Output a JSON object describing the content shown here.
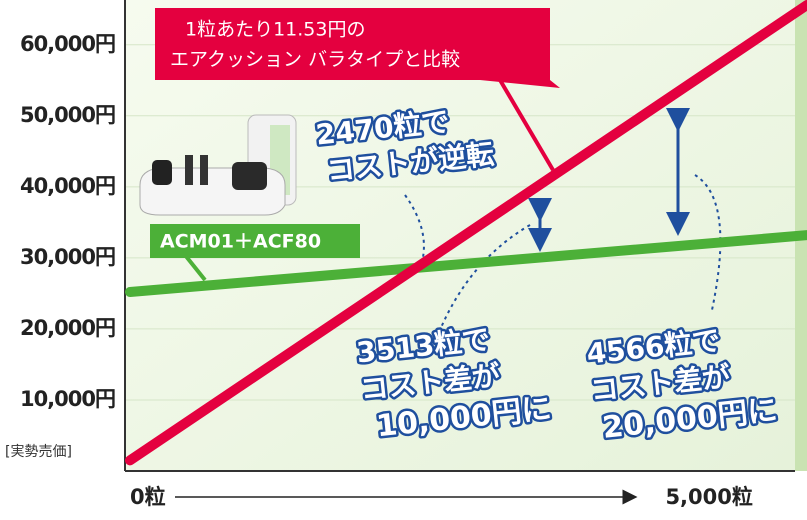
{
  "chart_data": {
    "type": "line",
    "y_label": "[実勢売価]",
    "xlim": [
      0,
      6000
    ],
    "xticks": [
      {
        "value": 0,
        "label": "0粒"
      },
      {
        "value": 5000,
        "label": "5,000粒"
      }
    ],
    "ylim": [
      0,
      66300
    ],
    "yticks": [
      {
        "value": 10000,
        "label": "10,000円"
      },
      {
        "value": 20000,
        "label": "20,000円"
      },
      {
        "value": 30000,
        "label": "30,000円"
      },
      {
        "value": 40000,
        "label": "40,000円"
      },
      {
        "value": 50000,
        "label": "50,000円"
      },
      {
        "value": 60000,
        "label": "60,000円"
      }
    ],
    "grid": true,
    "series": [
      {
        "color": "#e4003f",
        "x": [
          0,
          6000
        ],
        "values": [
          1500,
          65600
        ]
      },
      {
        "name": "ACM01＋ACF80",
        "color": "#4cb038",
        "x": [
          0,
          6000
        ],
        "values": [
          25200,
          33200
        ]
      }
    ],
    "annotations": {
      "comparison": [
        "1粒あたり11.53円の",
        "エアクッション バラタイプと比較"
      ],
      "crossover": [
        "2470粒で",
        "コストが逆転"
      ],
      "diff_10000": [
        "3513粒で",
        "コスト差が",
        "10,000円に"
      ],
      "diff_20000": [
        "4566粒で",
        "コスト差が",
        "20,000円に"
      ]
    }
  }
}
